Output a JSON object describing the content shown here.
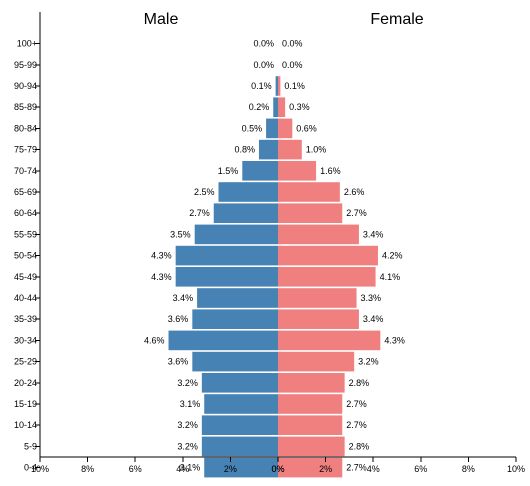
{
  "chart_data": {
    "type": "bar",
    "orientation": "horizontal",
    "categories": [
      "100+",
      "95-99",
      "90-94",
      "85-89",
      "80-84",
      "75-79",
      "70-74",
      "65-69",
      "60-64",
      "55-59",
      "50-54",
      "45-49",
      "40-44",
      "35-39",
      "30-34",
      "25-29",
      "20-24",
      "15-19",
      "10-14",
      "5-9",
      "0-4"
    ],
    "series": [
      {
        "name": "Male",
        "color": "#4682b4",
        "values": [
          0.0,
          0.0,
          0.1,
          0.2,
          0.5,
          0.8,
          1.5,
          2.5,
          2.7,
          3.5,
          4.3,
          4.3,
          3.4,
          3.6,
          4.6,
          3.6,
          3.2,
          3.1,
          3.2,
          3.2,
          3.1
        ],
        "labels": [
          "0.0%",
          "0.0%",
          "0.1%",
          "0.2%",
          "0.5%",
          "0.8%",
          "1.5%",
          "2.5%",
          "2.7%",
          "3.5%",
          "4.3%",
          "4.3%",
          "3.4%",
          "3.6%",
          "4.6%",
          "3.6%",
          "3.2%",
          "3.1%",
          "3.2%",
          "3.2%",
          "3.1%"
        ]
      },
      {
        "name": "Female",
        "color": "#f08080",
        "values": [
          0.0,
          0.0,
          0.1,
          0.3,
          0.6,
          1.0,
          1.6,
          2.6,
          2.7,
          3.4,
          4.2,
          4.1,
          3.3,
          3.4,
          4.3,
          3.2,
          2.8,
          2.7,
          2.7,
          2.8,
          2.7
        ],
        "labels": [
          "0.0%",
          "0.0%",
          "0.1%",
          "0.3%",
          "0.6%",
          "1.0%",
          "1.6%",
          "2.6%",
          "2.7%",
          "3.4%",
          "4.2%",
          "4.1%",
          "3.3%",
          "3.4%",
          "4.3%",
          "3.2%",
          "2.8%",
          "2.7%",
          "2.7%",
          "2.8%",
          "2.7%"
        ]
      }
    ],
    "x_ticks": {
      "male": [
        "10%",
        "8%",
        "6%",
        "4%",
        "2%",
        "0%"
      ],
      "female": [
        "0%",
        "2%",
        "4%",
        "6%",
        "8%",
        "10%"
      ]
    },
    "xlim": [
      0,
      10
    ],
    "title": "",
    "grid": false
  }
}
